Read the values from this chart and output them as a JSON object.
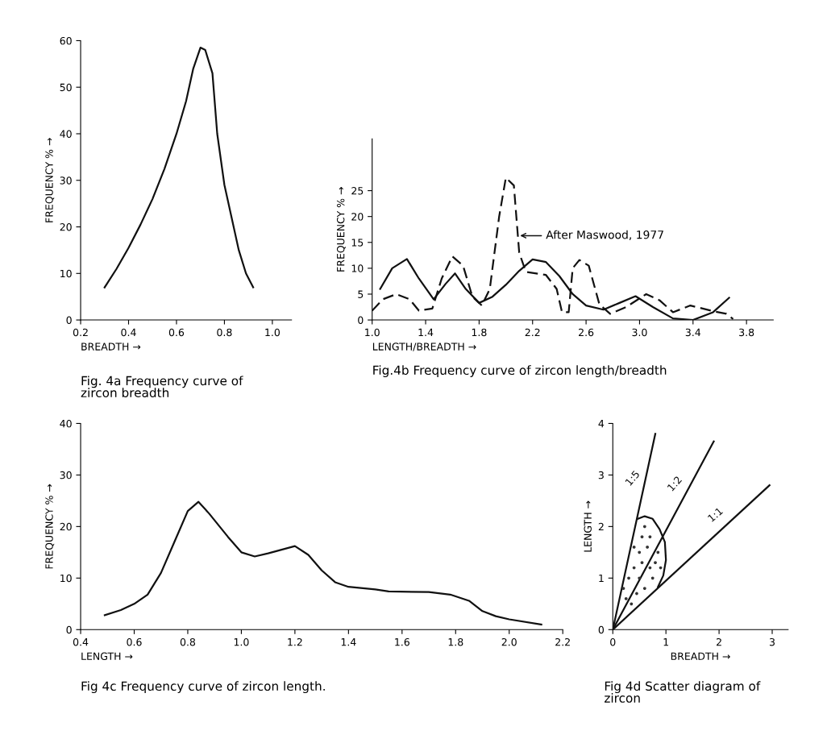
{
  "chart_data": [
    {
      "type": "line",
      "title": "Fig. 4a Frequency curve of\nzircon breadth",
      "xlabel": "BREADTH →",
      "ylabel": "FREQUENCY % →",
      "xlim": [
        0.2,
        1.08
      ],
      "xticks": [
        0.2,
        0.4,
        0.6,
        0.8,
        {
          "value": 1,
          "label": "1.0"
        }
      ],
      "ylim": [
        0,
        60
      ],
      "yticks": [
        0,
        10,
        20,
        30,
        40,
        50,
        60
      ],
      "grid": false,
      "legend": false,
      "series": [
        {
          "color": "#111111",
          "line_style": "solid",
          "x": [
            0.3,
            0.35,
            0.4,
            0.45,
            0.5,
            0.55,
            0.6,
            0.64,
            0.67,
            0.7,
            0.72,
            0.75,
            0.77,
            0.8,
            0.83,
            0.86,
            0.89,
            0.92
          ],
          "values": [
            7,
            11,
            15.5,
            20.5,
            26,
            32.5,
            40,
            47,
            54,
            58.5,
            58,
            53,
            40,
            29,
            22,
            15,
            10,
            7
          ]
        }
      ]
    },
    {
      "type": "line",
      "title": "Fig.4b Frequency curve of zircon length/breadth",
      "xlabel": "LENGTH/BREADTH →",
      "ylabel": "FREQUENCY % →",
      "xlim": [
        1.0,
        4.0
      ],
      "xticks": [
        {
          "value": 1,
          "label": "1.0"
        },
        1.4,
        1.8,
        2.2,
        2.6,
        {
          "value": 3,
          "label": "3.0"
        },
        3.4,
        3.8
      ],
      "ylim": [
        0,
        35
      ],
      "yticks": [
        0,
        5,
        10,
        15,
        20,
        25
      ],
      "grid": false,
      "legend": false,
      "annotations": [
        {
          "text": "After Maswood, 1977",
          "x": 2.09,
          "y": 16.3
        }
      ],
      "series": [
        {
          "color": "#111111",
          "line_style": "solid",
          "x": [
            1.06,
            1.15,
            1.26,
            1.35,
            1.46,
            1.55,
            1.62,
            1.7,
            1.8,
            1.9,
            2.0,
            2.1,
            2.2,
            2.3,
            2.4,
            2.5,
            2.6,
            2.73,
            2.85,
            2.97,
            3.1,
            3.25,
            3.4,
            3.55,
            3.67
          ],
          "values": [
            6,
            10,
            11.8,
            8,
            4,
            7,
            9,
            6,
            3.3,
            4.5,
            6.8,
            9.5,
            11.7,
            11.2,
            8.5,
            5,
            2.8,
            2,
            3.3,
            4.6,
            2.5,
            0.3,
            0,
            1.5,
            4.3
          ]
        },
        {
          "color": "#111111",
          "line_style": "dashed",
          "x": [
            1.0,
            1.08,
            1.18,
            1.28,
            1.35,
            1.45,
            1.52,
            1.6,
            1.68,
            1.75,
            1.82,
            1.88,
            1.95,
            2.0,
            2.06,
            2.1,
            2.15,
            2.3,
            2.38,
            2.42,
            2.47,
            2.5,
            2.55,
            2.62,
            2.7,
            2.78,
            2.9,
            3.05,
            3.15,
            3.25,
            3.38,
            3.55,
            3.65,
            3.7
          ],
          "values": [
            1.8,
            4,
            5,
            4,
            1.8,
            2.2,
            8,
            12.3,
            10.5,
            4.5,
            2.8,
            6,
            20,
            27.5,
            26,
            13,
            9.3,
            8.7,
            6,
            1.5,
            1.5,
            10,
            11.6,
            10.5,
            3,
            1.2,
            2.5,
            5,
            3.8,
            1.5,
            2.8,
            1.7,
            1.2,
            0.2
          ]
        }
      ]
    },
    {
      "type": "line",
      "title": "Fig 4c Frequency curve of zircon length.",
      "xlabel": "LENGTH →",
      "ylabel": "FREQUENCY % →",
      "xlim": [
        0.4,
        2.2
      ],
      "xticks": [
        0.4,
        0.6,
        0.8,
        {
          "value": 1,
          "label": "1.0"
        },
        1.2,
        1.4,
        1.6,
        1.8,
        {
          "value": 2,
          "label": "2.0"
        },
        2.2
      ],
      "ylim": [
        0,
        40
      ],
      "yticks": [
        0,
        10,
        20,
        30,
        40
      ],
      "grid": false,
      "legend": false,
      "series": [
        {
          "color": "#111111",
          "line_style": "solid",
          "x": [
            0.49,
            0.55,
            0.6,
            0.65,
            0.7,
            0.75,
            0.8,
            0.84,
            0.88,
            0.95,
            1.0,
            1.05,
            1.1,
            1.2,
            1.25,
            1.3,
            1.35,
            1.4,
            1.5,
            1.55,
            1.7,
            1.78,
            1.85,
            1.9,
            1.95,
            2.0,
            2.12
          ],
          "values": [
            2.8,
            3.8,
            5,
            6.8,
            11,
            17,
            23,
            24.8,
            22.5,
            18,
            15,
            14.2,
            14.8,
            16.2,
            14.5,
            11.5,
            9.2,
            8.3,
            7.8,
            7.4,
            7.3,
            6.8,
            5.6,
            3.6,
            2.6,
            2,
            1
          ]
        }
      ]
    },
    {
      "type": "scatter",
      "title": "Fig 4d Scatter diagram of\nzircon",
      "xlabel": "BREADTH →",
      "ylabel": "LENGTH →",
      "xlim": [
        0,
        3.3
      ],
      "xticks": [
        0,
        1,
        2,
        3
      ],
      "ylim": [
        0,
        4
      ],
      "yticks": [
        0,
        1,
        2,
        3,
        4
      ],
      "grid": false,
      "legend": false,
      "series": [
        {
          "type": "line",
          "name": "1:5",
          "color": "#111111",
          "line_style": "solid",
          "x": [
            0,
            0.8
          ],
          "values": [
            0,
            3.8
          ]
        },
        {
          "type": "line",
          "name": "1:2",
          "color": "#111111",
          "line_style": "solid",
          "x": [
            0,
            1.9
          ],
          "values": [
            0,
            3.65
          ]
        },
        {
          "type": "line",
          "name": "1:1",
          "color": "#111111",
          "line_style": "solid",
          "x": [
            0,
            2.95
          ],
          "values": [
            0,
            2.8
          ]
        },
        {
          "type": "line",
          "color": "#111111",
          "line_style": "solid",
          "x": [
            0.47,
            0.6,
            0.75,
            0.88,
            0.98,
            1.0,
            0.95,
            0.85
          ],
          "values": [
            2.15,
            2.2,
            2.15,
            1.95,
            1.7,
            1.35,
            1.05,
            0.83
          ]
        },
        {
          "type": "scatter",
          "marker": "circle",
          "color": "#333333",
          "x": [
            0.2,
            0.3,
            0.4,
            0.5,
            0.55,
            0.6,
            0.65,
            0.7,
            0.8,
            0.85,
            0.75,
            0.6,
            0.45,
            0.35,
            0.5,
            0.4,
            0.7,
            0.9,
            0.25,
            0.55
          ],
          "values": [
            0.8,
            1.0,
            1.2,
            1.5,
            1.8,
            2.0,
            1.6,
            1.2,
            1.3,
            1.5,
            1.0,
            0.8,
            0.7,
            0.5,
            1.0,
            1.6,
            1.8,
            1.2,
            0.6,
            1.3
          ]
        }
      ]
    }
  ]
}
